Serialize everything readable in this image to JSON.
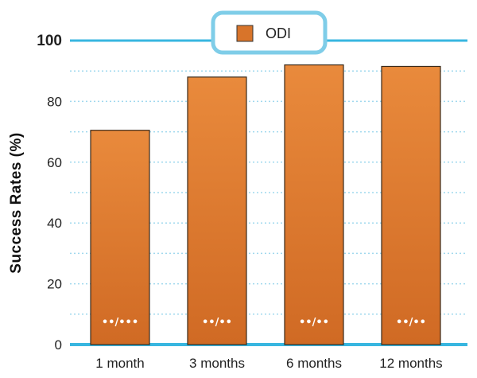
{
  "chart_data": {
    "type": "bar",
    "categories": [
      "1 month",
      "3 months",
      "6 months",
      "12 months"
    ],
    "series": [
      {
        "name": "ODI",
        "values": [
          70.5,
          88,
          92,
          91.5
        ]
      }
    ],
    "bar_labels": [
      "••/•••",
      "••/••",
      "••/••",
      "••/••"
    ],
    "ylabel": "Success Rates (%)",
    "xlabel": "",
    "ylim": [
      0,
      100
    ],
    "yticks": [
      "0",
      "20",
      "40",
      "60",
      "80",
      "100"
    ],
    "grid": true,
    "legend": "top-center",
    "colors": {
      "bar": "#d8742a",
      "bar_light": "#e98a3c",
      "bar_dark": "#b85a1c",
      "axis": "#38b6e0",
      "grid": "#9fd8ee"
    }
  }
}
